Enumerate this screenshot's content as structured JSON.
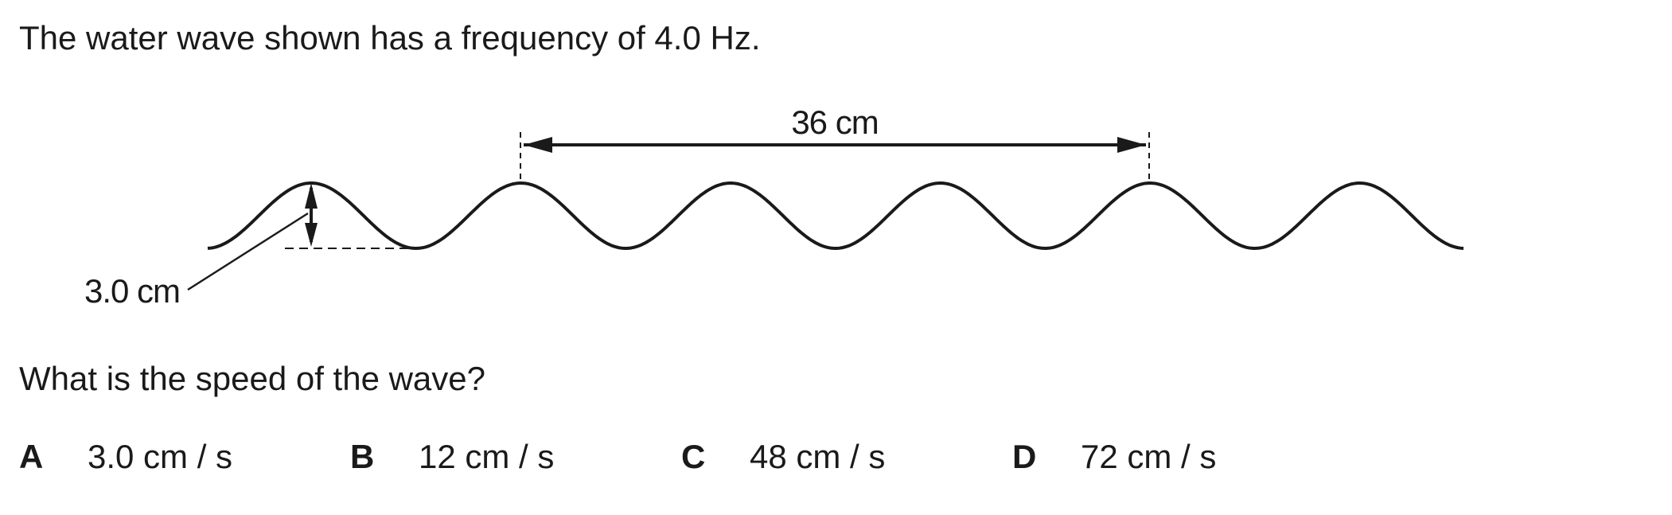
{
  "question": {
    "stem": "The water wave shown has a frequency of 4.0 Hz.",
    "prompt": "What is the speed of the wave?"
  },
  "diagram": {
    "wavelength_label": "36 cm",
    "amplitude_label": "3.0 cm",
    "wave_cycles": 6,
    "wavelength_span_cycles": 3
  },
  "options": [
    {
      "letter": "A",
      "text": "3.0 cm / s"
    },
    {
      "letter": "B",
      "text": "12 cm / s"
    },
    {
      "letter": "C",
      "text": "48 cm / s"
    },
    {
      "letter": "D",
      "text": "72 cm / s"
    }
  ]
}
